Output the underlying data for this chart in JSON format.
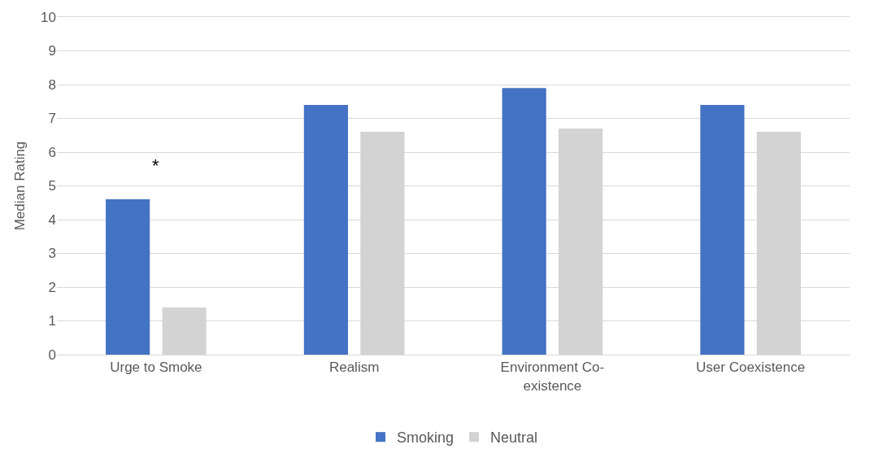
{
  "chart_data": {
    "type": "bar",
    "ylabel": "Median Rating",
    "categories": [
      "Urge to Smoke",
      "Realism",
      "Environment Co-existence",
      "User Coexistence"
    ],
    "series": [
      {
        "name": "Smoking",
        "color": "#4472c4",
        "values": [
          4.6,
          7.4,
          7.9,
          7.4
        ]
      },
      {
        "name": "Neutral",
        "color": "#d3d3d3",
        "values": [
          1.4,
          6.6,
          6.7,
          6.6
        ]
      }
    ],
    "ylim": [
      0,
      10
    ],
    "yticks": [
      0,
      1,
      2,
      3,
      4,
      5,
      6,
      7,
      8,
      9,
      10
    ],
    "grid": "y",
    "legend": "bottom",
    "annotations": [
      "*"
    ]
  }
}
